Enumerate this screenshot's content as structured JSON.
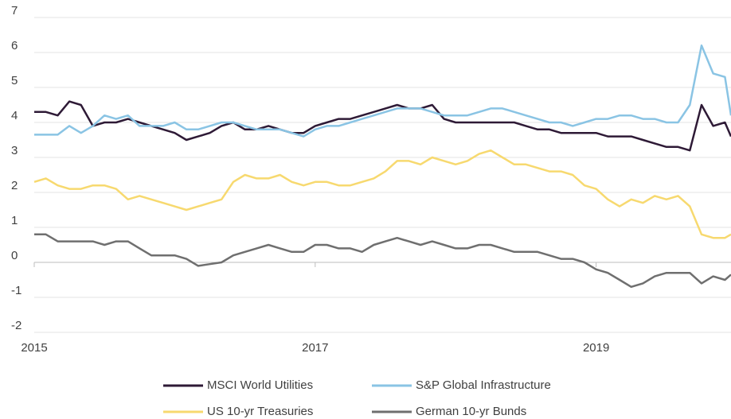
{
  "chart_data": {
    "type": "line",
    "x": [
      2015,
      2015.083,
      2015.167,
      2015.25,
      2015.333,
      2015.417,
      2015.5,
      2015.583,
      2015.667,
      2015.75,
      2015.833,
      2015.917,
      2016,
      2016.083,
      2016.167,
      2016.25,
      2016.333,
      2016.417,
      2016.5,
      2016.583,
      2016.667,
      2016.75,
      2016.833,
      2016.917,
      2017,
      2017.083,
      2017.167,
      2017.25,
      2017.333,
      2017.417,
      2017.5,
      2017.583,
      2017.667,
      2017.75,
      2017.833,
      2017.917,
      2018,
      2018.083,
      2018.167,
      2018.25,
      2018.333,
      2018.417,
      2018.5,
      2018.583,
      2018.667,
      2018.75,
      2018.833,
      2018.917,
      2019,
      2019.083,
      2019.167,
      2019.25,
      2019.333,
      2019.417,
      2019.5,
      2019.583,
      2019.667,
      2019.75,
      2019.833,
      2019.917,
      2019.96
    ],
    "series": [
      {
        "name": "MSCI World Utilities",
        "color": "#2e1a36",
        "values": [
          4.3,
          4.3,
          4.2,
          4.6,
          4.5,
          3.9,
          4.0,
          4.0,
          4.1,
          4.0,
          3.9,
          3.8,
          3.7,
          3.5,
          3.6,
          3.7,
          3.9,
          4.0,
          3.8,
          3.8,
          3.9,
          3.8,
          3.7,
          3.7,
          3.9,
          4.0,
          4.1,
          4.1,
          4.2,
          4.3,
          4.4,
          4.5,
          4.4,
          4.4,
          4.5,
          4.1,
          4.0,
          4.0,
          4.0,
          4.0,
          4.0,
          4.0,
          3.9,
          3.8,
          3.8,
          3.7,
          3.7,
          3.7,
          3.7,
          3.6,
          3.6,
          3.6,
          3.5,
          3.4,
          3.3,
          3.3,
          3.2,
          4.5,
          3.9,
          4.0,
          3.6
        ]
      },
      {
        "name": "S&P Global Infrastructure",
        "color": "#8ac4e4",
        "values": [
          3.65,
          3.65,
          3.65,
          3.9,
          3.7,
          3.9,
          4.2,
          4.1,
          4.2,
          3.9,
          3.9,
          3.9,
          4.0,
          3.8,
          3.8,
          3.9,
          4.0,
          4.0,
          3.9,
          3.8,
          3.8,
          3.8,
          3.7,
          3.6,
          3.8,
          3.9,
          3.9,
          4.0,
          4.1,
          4.2,
          4.3,
          4.4,
          4.4,
          4.4,
          4.3,
          4.2,
          4.2,
          4.2,
          4.3,
          4.4,
          4.4,
          4.3,
          4.2,
          4.1,
          4.0,
          4.0,
          3.9,
          4.0,
          4.1,
          4.1,
          4.2,
          4.2,
          4.1,
          4.1,
          4.0,
          4.0,
          4.5,
          6.2,
          5.4,
          5.3,
          4.2
        ]
      },
      {
        "name": "US 10-yr Treasuries",
        "color": "#f7d96f",
        "values": [
          2.3,
          2.4,
          2.2,
          2.1,
          2.1,
          2.2,
          2.2,
          2.1,
          1.8,
          1.9,
          1.8,
          1.7,
          1.6,
          1.5,
          1.6,
          1.7,
          1.8,
          2.3,
          2.5,
          2.4,
          2.4,
          2.5,
          2.3,
          2.2,
          2.3,
          2.3,
          2.2,
          2.2,
          2.3,
          2.4,
          2.6,
          2.9,
          2.9,
          2.8,
          3.0,
          2.9,
          2.8,
          2.9,
          3.1,
          3.2,
          3.0,
          2.8,
          2.8,
          2.7,
          2.6,
          2.6,
          2.5,
          2.2,
          2.1,
          1.8,
          1.6,
          1.8,
          1.7,
          1.9,
          1.8,
          1.9,
          1.6,
          0.8,
          0.7,
          0.7,
          0.8
        ]
      },
      {
        "name": "German 10-yr Bunds",
        "color": "#6f6f6f",
        "values": [
          0.8,
          0.8,
          0.6,
          0.6,
          0.6,
          0.6,
          0.5,
          0.6,
          0.6,
          0.4,
          0.2,
          0.2,
          0.2,
          0.1,
          -0.1,
          -0.05,
          0.0,
          0.2,
          0.3,
          0.4,
          0.5,
          0.4,
          0.3,
          0.3,
          0.5,
          0.5,
          0.4,
          0.4,
          0.3,
          0.5,
          0.6,
          0.7,
          0.6,
          0.5,
          0.6,
          0.5,
          0.4,
          0.4,
          0.5,
          0.5,
          0.4,
          0.3,
          0.3,
          0.3,
          0.2,
          0.1,
          0.1,
          0.0,
          -0.2,
          -0.3,
          -0.5,
          -0.7,
          -0.6,
          -0.4,
          -0.3,
          -0.3,
          -0.3,
          -0.6,
          -0.4,
          -0.5,
          -0.35
        ]
      }
    ],
    "xlim": [
      2015,
      2019.96
    ],
    "xticks": [
      2015,
      2017,
      2019
    ],
    "ylim": [
      -2,
      7
    ],
    "yticks": [
      -2,
      -1,
      0,
      1,
      2,
      3,
      4,
      5,
      6,
      7
    ],
    "grid": true,
    "legend": "bottom"
  }
}
